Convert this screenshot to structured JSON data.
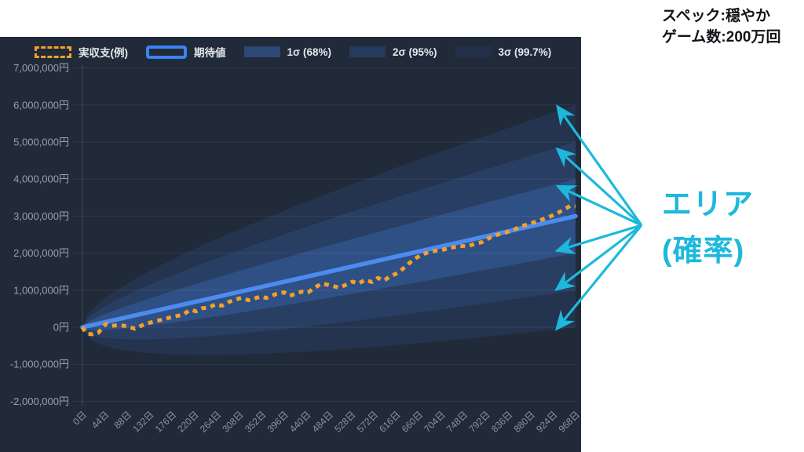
{
  "header": {
    "spec_line": "スペック:穏やか",
    "games_line": "ゲーム数:200万回"
  },
  "annotation": {
    "label_line1": "エリア",
    "label_line2": "(確率)",
    "color": "#1db9dc",
    "arrow_origin": [
      817,
      287
    ],
    "arrow_tips": [
      [
        711,
        137
      ],
      [
        711,
        191
      ],
      [
        712,
        238
      ],
      [
        711,
        319
      ],
      [
        710,
        368
      ],
      [
        710,
        418
      ]
    ]
  },
  "legend": {
    "items": [
      {
        "id": "actual",
        "label": "実収支(例)",
        "swatch": "dashed-outline",
        "color": "#f5a02b"
      },
      {
        "id": "expected",
        "label": "期待値",
        "swatch": "solid-outline",
        "color": "#3b82f6"
      },
      {
        "id": "sigma1",
        "label": "1σ (68%)",
        "swatch": "fill",
        "color": "#2b4876"
      },
      {
        "id": "sigma2",
        "label": "2σ (95%)",
        "swatch": "fill",
        "color": "#263a5c"
      },
      {
        "id": "sigma3",
        "label": "3σ (99.7%)",
        "swatch": "fill",
        "color": "#222f49"
      }
    ]
  },
  "chart_data": {
    "type": "line+area",
    "title": "",
    "grid": true,
    "legend_position": "top",
    "background_color": "#212a39",
    "x_axis": {
      "unit": "日",
      "min": 0,
      "max": 968,
      "tick_step": 44,
      "tick_labels": [
        "0日",
        "44日",
        "88日",
        "132日",
        "176日",
        "220日",
        "264日",
        "308日",
        "352日",
        "396日",
        "440日",
        "484日",
        "528日",
        "572日",
        "616日",
        "660日",
        "704日",
        "748日",
        "792日",
        "836日",
        "880日",
        "924日",
        "968日"
      ]
    },
    "y_axis": {
      "unit": "円",
      "min": -2000000,
      "max": 7000000,
      "tick_step": 1000000,
      "tick_values": [
        7000000,
        6000000,
        5000000,
        4000000,
        3000000,
        2000000,
        1000000,
        0,
        -1000000,
        -2000000
      ],
      "tick_labels": [
        "7,000,000円",
        "6,000,000円",
        "5,000,000円",
        "4,000,000円",
        "3,000,000円",
        "2,000,000円",
        "1,000,000円",
        "0円",
        "-1,000,000円",
        "-2,000,000円"
      ]
    },
    "expected_line": {
      "name": "期待値",
      "start_value": 0,
      "end_value": 3000000,
      "color": "#4d8bf0"
    },
    "sigma_end_value": 1000000,
    "sigma_bands": [
      {
        "name": "1σ (68%)",
        "k": 1,
        "color": "#2e5085",
        "end_range": [
          2000000,
          4000000
        ]
      },
      {
        "name": "2σ (95%)",
        "k": 2,
        "color": "#293e63",
        "end_range": [
          1000000,
          5000000
        ]
      },
      {
        "name": "3σ (99.7%)",
        "k": 3,
        "color": "#24334e",
        "end_range": [
          0,
          6000000
        ]
      }
    ],
    "actual_series": {
      "name": "実収支(例)",
      "color": "#f5a02b",
      "dashed": true,
      "points": [
        [
          0,
          0
        ],
        [
          8,
          -170000
        ],
        [
          20,
          -190000
        ],
        [
          31,
          -150000
        ],
        [
          46,
          90000
        ],
        [
          58,
          40000
        ],
        [
          74,
          60000
        ],
        [
          89,
          20000
        ],
        [
          103,
          -40000
        ],
        [
          123,
          90000
        ],
        [
          146,
          170000
        ],
        [
          172,
          260000
        ],
        [
          197,
          340000
        ],
        [
          212,
          470000
        ],
        [
          223,
          430000
        ],
        [
          235,
          510000
        ],
        [
          249,
          530000
        ],
        [
          261,
          620000
        ],
        [
          274,
          580000
        ],
        [
          287,
          680000
        ],
        [
          300,
          750000
        ],
        [
          312,
          790000
        ],
        [
          326,
          730000
        ],
        [
          341,
          790000
        ],
        [
          350,
          830000
        ],
        [
          361,
          790000
        ],
        [
          372,
          850000
        ],
        [
          381,
          900000
        ],
        [
          396,
          940000
        ],
        [
          407,
          850000
        ],
        [
          418,
          900000
        ],
        [
          430,
          960000
        ],
        [
          443,
          940000
        ],
        [
          455,
          1060000
        ],
        [
          470,
          1180000
        ],
        [
          480,
          1150000
        ],
        [
          492,
          1110000
        ],
        [
          505,
          1070000
        ],
        [
          518,
          1150000
        ],
        [
          530,
          1230000
        ],
        [
          542,
          1180000
        ],
        [
          555,
          1280000
        ],
        [
          568,
          1220000
        ],
        [
          580,
          1330000
        ],
        [
          592,
          1260000
        ],
        [
          605,
          1380000
        ],
        [
          620,
          1470000
        ],
        [
          635,
          1650000
        ],
        [
          650,
          1830000
        ],
        [
          665,
          1950000
        ],
        [
          680,
          2030000
        ],
        [
          695,
          2070000
        ],
        [
          710,
          2100000
        ],
        [
          725,
          2150000
        ],
        [
          740,
          2200000
        ],
        [
          755,
          2180000
        ],
        [
          770,
          2250000
        ],
        [
          785,
          2300000
        ],
        [
          800,
          2420000
        ],
        [
          815,
          2500000
        ],
        [
          830,
          2550000
        ],
        [
          845,
          2620000
        ],
        [
          860,
          2720000
        ],
        [
          875,
          2780000
        ],
        [
          890,
          2850000
        ],
        [
          905,
          2920000
        ],
        [
          920,
          3000000
        ],
        [
          935,
          3100000
        ],
        [
          948,
          3200000
        ],
        [
          958,
          3280000
        ],
        [
          968,
          3260000
        ]
      ]
    }
  }
}
